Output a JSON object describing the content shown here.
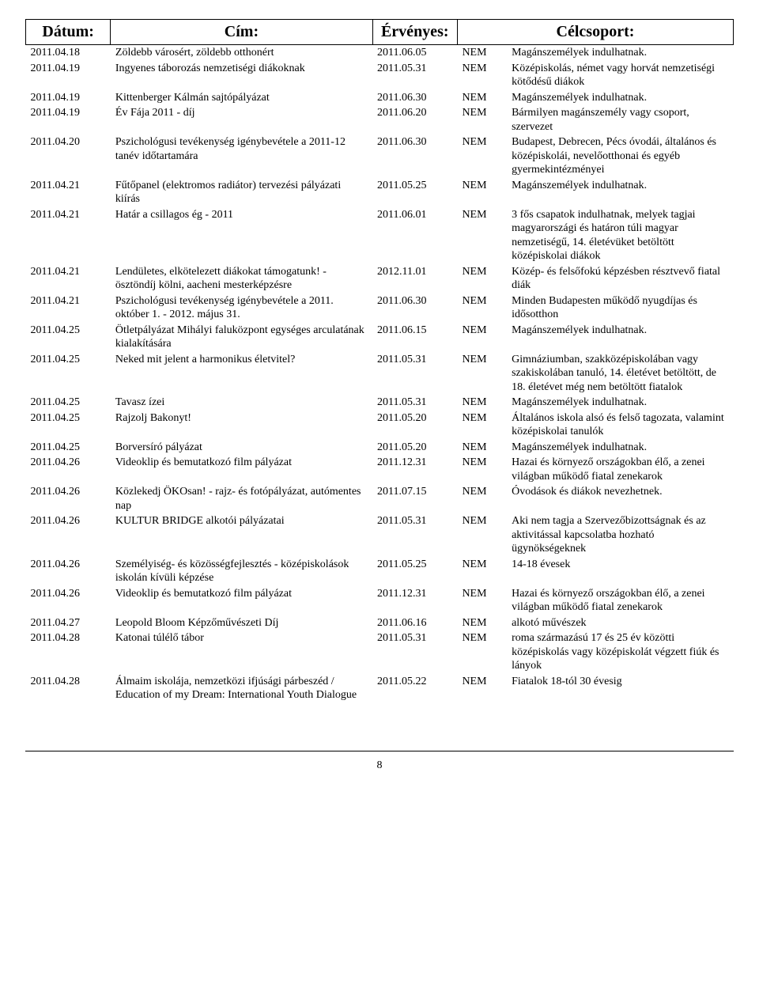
{
  "headers": {
    "date": "Dátum:",
    "title": "Cím:",
    "valid": "Érvényes:",
    "target": "Célcsoport:"
  },
  "page_number": "8",
  "flag_value": "NEM",
  "rows": [
    {
      "date": "2011.04.18",
      "title": "Zöldebb városért, zöldebb otthonért",
      "valid": "2011.06.05",
      "flag": "NEM",
      "target": "Magánszemélyek indulhatnak."
    },
    {
      "date": "2011.04.19",
      "title": "Ingyenes táborozás nemzetiségi diákoknak",
      "valid": "2011.05.31",
      "flag": "NEM",
      "target": "Középiskolás, német vagy horvát nemzetiségi kötődésű diákok"
    },
    {
      "date": "2011.04.19",
      "title": "Kittenberger Kálmán sajtópályázat",
      "valid": "2011.06.30",
      "flag": "NEM",
      "target": "Magánszemélyek indulhatnak."
    },
    {
      "date": "2011.04.19",
      "title": "Év Fája 2011 - díj",
      "valid": "2011.06.20",
      "flag": "NEM",
      "target": "Bármilyen magánszemély vagy csoport, szervezet"
    },
    {
      "date": "2011.04.20",
      "title": "Pszichológusi tevékenység igénybevétele a 2011-12 tanév időtartamára",
      "valid": "2011.06.30",
      "flag": "NEM",
      "target": "Budapest, Debrecen, Pécs óvodái, általános és középiskolái, nevelőotthonai és egyéb gyermekintézményei"
    },
    {
      "date": "2011.04.21",
      "title": "Fűtőpanel (elektromos radiátor) tervezési pályázati kiírás",
      "valid": "2011.05.25",
      "flag": "NEM",
      "target": "Magánszemélyek indulhatnak."
    },
    {
      "date": "2011.04.21",
      "title": "Határ a csillagos ég - 2011",
      "valid": "2011.06.01",
      "flag": "NEM",
      "target": "3 fős csapatok indulhatnak, melyek tagjai magyarországi és határon túli magyar nemzetiségű, 14. életévüket betöltött középiskolai diákok"
    },
    {
      "date": "2011.04.21",
      "title": "Lendületes, elkötelezett diákokat támogatunk! - ösztöndíj kölni, aacheni mesterképzésre",
      "valid": "2012.11.01",
      "flag": "NEM",
      "target": "Közép- és felsőfokú képzésben résztvevő fiatal diák"
    },
    {
      "date": "2011.04.21",
      "title": "Pszichológusi tevékenység igénybevétele a 2011. október 1. - 2012. május 31.",
      "valid": "2011.06.30",
      "flag": "NEM",
      "target": "Minden Budapesten működő nyugdíjas és idősotthon"
    },
    {
      "date": "2011.04.25",
      "title": "Ötletpályázat Mihályi faluközpont egységes arculatának kialakítására",
      "valid": "2011.06.15",
      "flag": "NEM",
      "target": "Magánszemélyek indulhatnak."
    },
    {
      "date": "2011.04.25",
      "title": "Neked mit jelent a harmonikus életvitel?",
      "valid": "2011.05.31",
      "flag": "NEM",
      "target": "Gimnáziumban, szakközépiskolában vagy szakiskolában tanuló, 14. életévet betöltött, de 18. életévet még nem betöltött fiatalok"
    },
    {
      "date": "2011.04.25",
      "title": "Tavasz ízei",
      "valid": "2011.05.31",
      "flag": "NEM",
      "target": "Magánszemélyek indulhatnak."
    },
    {
      "date": "2011.04.25",
      "title": "Rajzolj Bakonyt!",
      "valid": "2011.05.20",
      "flag": "NEM",
      "target": "Általános iskola alsó és felső tagozata, valamint középiskolai tanulók"
    },
    {
      "date": "2011.04.25",
      "title": "Borversíró pályázat",
      "valid": "2011.05.20",
      "flag": "NEM",
      "target": "Magánszemélyek indulhatnak."
    },
    {
      "date": "2011.04.26",
      "title": "Videoklip és bemutatkozó film pályázat",
      "valid": "2011.12.31",
      "flag": "NEM",
      "target": "Hazai és környező országokban élő, a zenei világban működő fiatal zenekarok"
    },
    {
      "date": "2011.04.26",
      "title": "Közlekedj ÖKOsan! - rajz- és fotópályázat, autómentes nap",
      "valid": "2011.07.15",
      "flag": "NEM",
      "target": "Óvodások és diákok nevezhetnek."
    },
    {
      "date": "2011.04.26",
      "title": "KULTUR BRIDGE alkotói pályázatai",
      "valid": "2011.05.31",
      "flag": "NEM",
      "target": "Aki nem tagja a Szervezőbizottságnak és az aktivitással kapcsolatba hozható ügynökségeknek"
    },
    {
      "date": "2011.04.26",
      "title": "Személyiség- és közösségfejlesztés - középiskolások iskolán kívüli képzése",
      "valid": "2011.05.25",
      "flag": "NEM",
      "target": "14-18 évesek"
    },
    {
      "date": "2011.04.26",
      "title": "Videoklip és bemutatkozó film pályázat",
      "valid": "2011.12.31",
      "flag": "NEM",
      "target": "Hazai és környező országokban élő, a zenei világban működő fiatal zenekarok"
    },
    {
      "date": "2011.04.27",
      "title": "Leopold Bloom Képzőművészeti Díj",
      "valid": "2011.06.16",
      "flag": "NEM",
      "target": "alkotó művészek"
    },
    {
      "date": "2011.04.28",
      "title": "Katonai túlélő tábor",
      "valid": "2011.05.31",
      "flag": "NEM",
      "target": "roma származású 17 és 25 év közötti középiskolás vagy középiskolát végzett fiúk és lányok"
    },
    {
      "date": "2011.04.28",
      "title": "Álmaim iskolája, nemzetközi ifjúsági párbeszéd / Education of my Dream: International Youth Dialogue",
      "valid": "2011.05.22",
      "flag": "NEM",
      "target": "Fiatalok 18-tól 30 évesig"
    }
  ]
}
